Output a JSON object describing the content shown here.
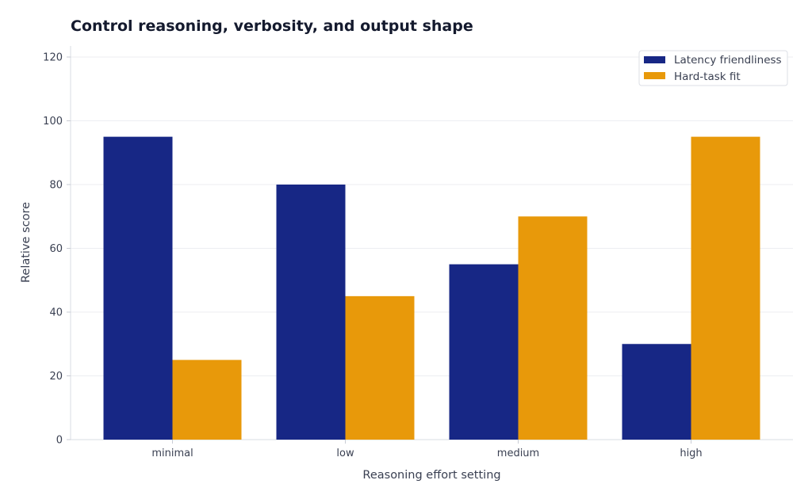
{
  "chart_data": {
    "type": "bar",
    "title": "Control reasoning, verbosity, and output shape",
    "xlabel": "Reasoning effort setting",
    "ylabel": "Relative score",
    "categories": [
      "minimal",
      "low",
      "medium",
      "high"
    ],
    "series": [
      {
        "name": "Latency friendliness",
        "values": [
          95,
          80,
          55,
          30
        ],
        "color": "#172785"
      },
      {
        "name": "Hard-task fit",
        "values": [
          25,
          45,
          70,
          95
        ],
        "color": "#e8990a"
      }
    ],
    "ylim": [
      0,
      120
    ],
    "yticks": [
      0,
      20,
      40,
      60,
      80,
      100,
      120
    ],
    "grid": true,
    "legend_position": "top-right"
  }
}
